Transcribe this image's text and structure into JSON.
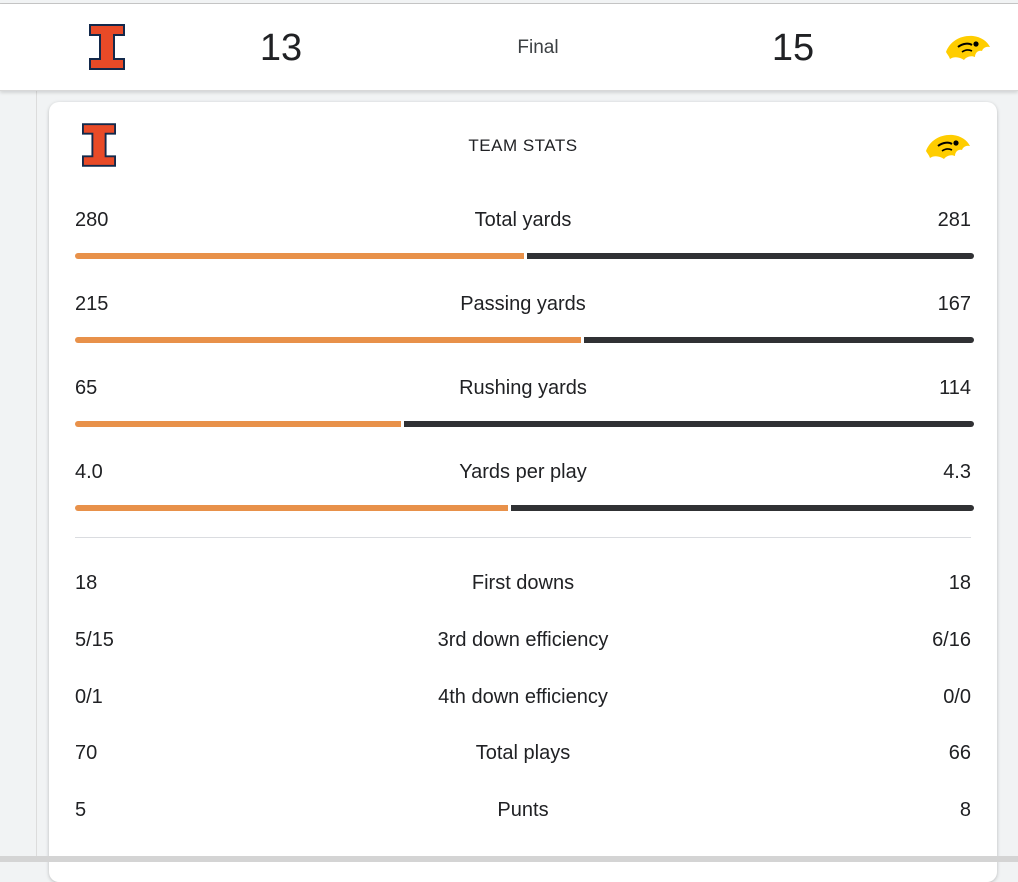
{
  "scoreboard": {
    "home_score": "13",
    "away_score": "15",
    "status": "Final"
  },
  "team_stats": {
    "title": "TEAM STATS",
    "colors": {
      "left_team": "#e8914a",
      "right_team": "#303134"
    },
    "bar_stats": [
      {
        "label": "Total yards",
        "left": "280",
        "right": "281",
        "left_share": 0.499
      },
      {
        "label": "Passing yards",
        "left": "215",
        "right": "167",
        "left_share": 0.563
      },
      {
        "label": "Rushing yards",
        "left": "65",
        "right": "114",
        "left_share": 0.363
      },
      {
        "label": "Yards per play",
        "left": "4.0",
        "right": "4.3",
        "left_share": 0.482
      }
    ],
    "other_stats": [
      {
        "label": "First downs",
        "left": "18",
        "right": "18"
      },
      {
        "label": "3rd down efficiency",
        "left": "5/15",
        "right": "6/16"
      },
      {
        "label": "4th down efficiency",
        "left": "0/1",
        "right": "0/0"
      },
      {
        "label": "Total plays",
        "left": "70",
        "right": "66"
      },
      {
        "label": "Punts",
        "left": "5",
        "right": "8"
      }
    ]
  }
}
